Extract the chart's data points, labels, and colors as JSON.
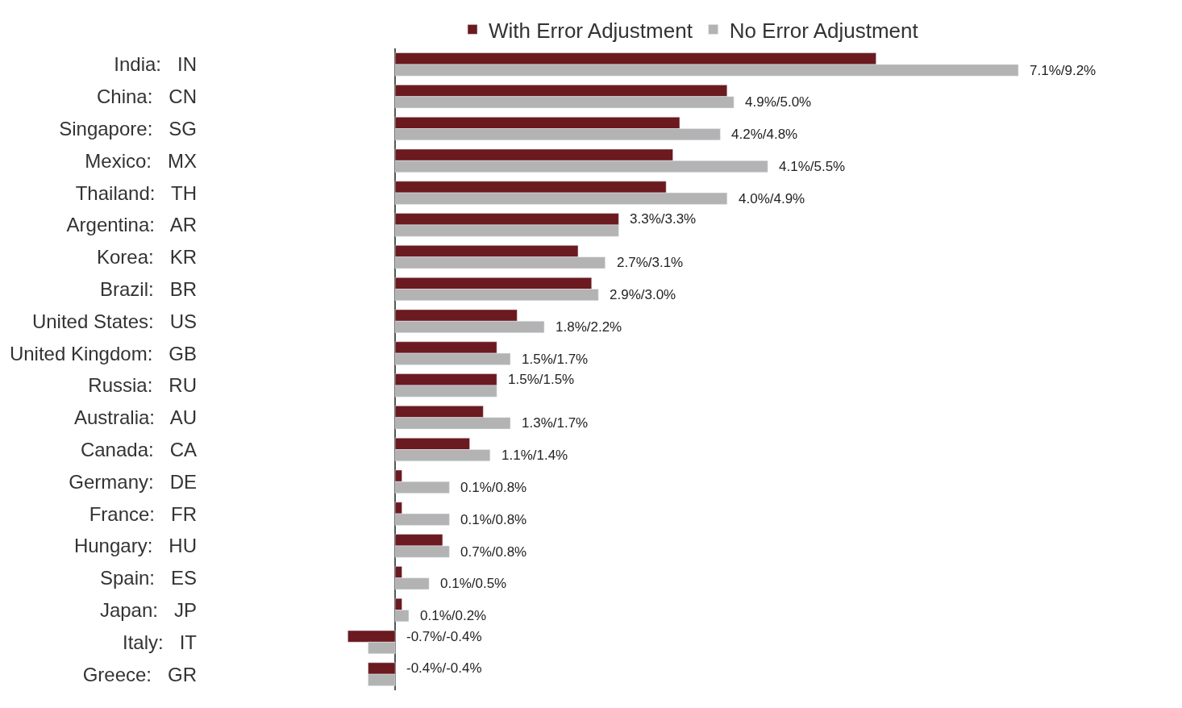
{
  "chart_data": {
    "type": "bar",
    "orientation": "horizontal",
    "legend": "top",
    "tick_labels": "y",
    "categories": [
      "India:   IN",
      "China:   CN",
      "Singapore:   SG",
      "Mexico:   MX",
      "Thailand:   TH",
      "Argentina:   AR",
      "Korea:   KR",
      "Brazil:   BR",
      "United States:   US",
      "United Kingdom:   GB",
      "Russia:   RU",
      "Australia:   AU",
      "Canada:   CA",
      "Germany:   DE",
      "France:   FR",
      "Hungary:   HU",
      "Spain:   ES",
      "Japan:   JP",
      "Italy:   IT",
      "Greece:   GR"
    ],
    "series": [
      {
        "name": "With Error Adjustment",
        "color": "#6b1a1f",
        "values": [
          7.1,
          4.9,
          4.2,
          4.1,
          4.0,
          3.3,
          2.7,
          2.9,
          1.8,
          1.5,
          1.5,
          1.3,
          1.1,
          0.1,
          0.1,
          0.7,
          0.1,
          0.1,
          -0.7,
          -0.4
        ],
        "value_labels": [
          null,
          null,
          null,
          null,
          null,
          "3.3%/3.3%",
          null,
          null,
          null,
          null,
          "1.5%/1.5%",
          null,
          null,
          null,
          null,
          null,
          null,
          null,
          "-0.7%/-0.4%",
          "-0.4%/-0.4%"
        ]
      },
      {
        "name": "No Error Adjustment",
        "color": "#b3b3b3",
        "values": [
          9.2,
          5.0,
          4.8,
          5.5,
          4.9,
          3.3,
          3.1,
          3.0,
          2.2,
          1.7,
          1.5,
          1.7,
          1.4,
          0.8,
          0.8,
          0.8,
          0.5,
          0.2,
          -0.4,
          -0.4
        ],
        "value_labels": [
          "7.1%/9.2%",
          "4.9%/5.0%",
          "4.2%/4.8%",
          "4.1%/5.5%",
          "4.0%/4.9%",
          null,
          "2.7%/3.1%",
          "2.9%/3.0%",
          "1.8%/2.2%",
          "1.5%/1.7%",
          null,
          "1.3%/1.7%",
          "1.1%/1.4%",
          "0.1%/0.8%",
          "0.1%/0.8%",
          "0.7%/0.8%",
          "0.1%/0.5%",
          "0.1%/0.2%",
          null,
          null
        ]
      }
    ]
  }
}
